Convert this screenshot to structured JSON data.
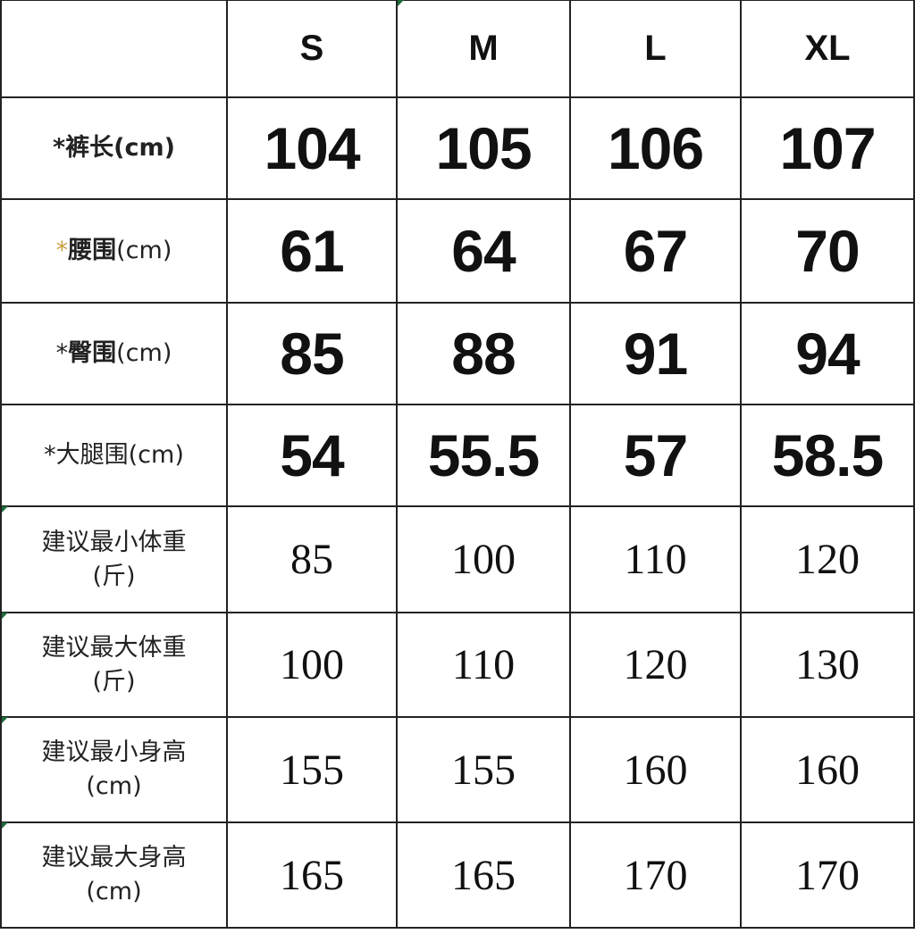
{
  "header": {
    "corner": "",
    "sizes": [
      "S",
      "M",
      "L",
      "XL"
    ]
  },
  "rows": [
    {
      "star": "*",
      "label": "裤长",
      "unit": "(cm)",
      "values": [
        "104",
        "105",
        "106",
        "107"
      ]
    },
    {
      "star": "*",
      "label": "腰围",
      "unit": "(cm)",
      "values": [
        "61",
        "64",
        "67",
        "70"
      ]
    },
    {
      "star": "*",
      "label": "臀围",
      "unit": "(cm)",
      "values": [
        "85",
        "88",
        "91",
        "94"
      ]
    },
    {
      "star": "*",
      "label": "大腿围",
      "unit": "(cm)",
      "values": [
        "54",
        "55.5",
        "57",
        "58.5"
      ]
    },
    {
      "label": "建议最小体重",
      "unit": "(斤)",
      "values": [
        "85",
        "100",
        "110",
        "120"
      ]
    },
    {
      "label": "建议最大体重",
      "unit": "(斤)",
      "values": [
        "100",
        "110",
        "120",
        "130"
      ]
    },
    {
      "label": "建议最小身高",
      "unit": "(cm)",
      "values": [
        "155",
        "155",
        "160",
        "160"
      ]
    },
    {
      "label": "建议最大身高",
      "unit": "(cm)",
      "values": [
        "165",
        "165",
        "170",
        "170"
      ]
    }
  ],
  "colors": {
    "star_highlight": "#c9a040",
    "comment_marker": "#1e6b3a"
  }
}
